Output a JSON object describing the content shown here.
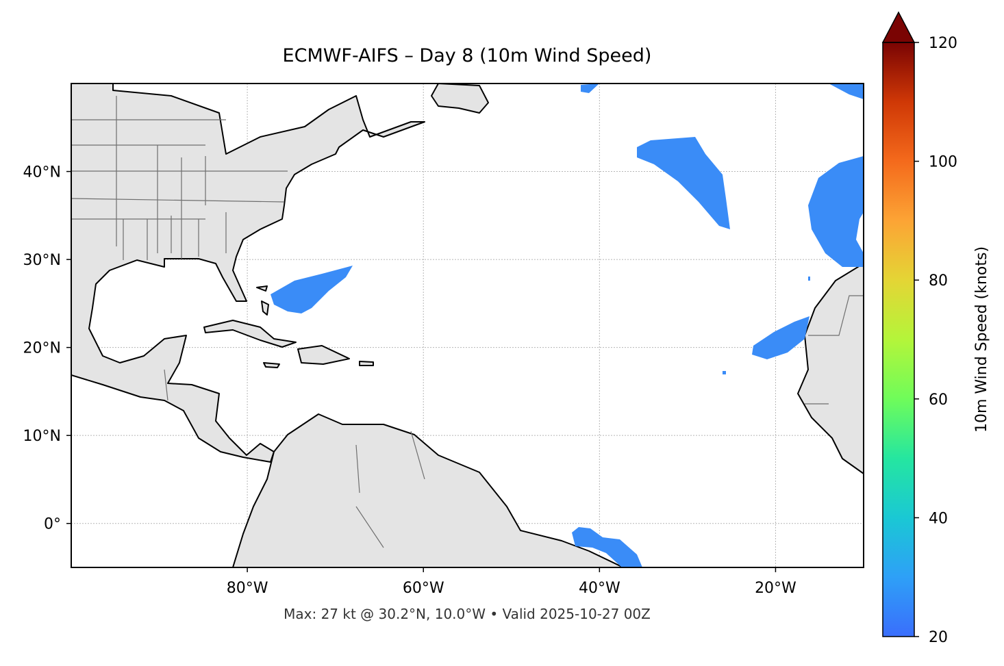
{
  "map": {
    "title": "ECMWF-AIFS – Day 8 (10m Wind Speed)",
    "xlim": [
      -100,
      -10
    ],
    "ylim": [
      -5,
      50
    ],
    "xticks": [
      {
        "value": -80,
        "label": "80°W"
      },
      {
        "value": -60,
        "label": "60°W"
      },
      {
        "value": -40,
        "label": "40°W"
      },
      {
        "value": -20,
        "label": "20°W"
      }
    ],
    "yticks": [
      {
        "value": 0,
        "label": "0°"
      },
      {
        "value": 10,
        "label": "10°N"
      },
      {
        "value": 20,
        "label": "20°N"
      },
      {
        "value": 30,
        "label": "30°N"
      },
      {
        "value": 40,
        "label": "40°N"
      }
    ],
    "colorbar": {
      "label": "10m Wind Speed (knots)",
      "lim": [
        20,
        120
      ],
      "ticks": [
        20,
        40,
        60,
        80,
        100,
        120
      ]
    },
    "footer": "Max: 27 kt @ 30.2°N, 10.0°W • Valid 2025-10-27 00Z"
  }
}
